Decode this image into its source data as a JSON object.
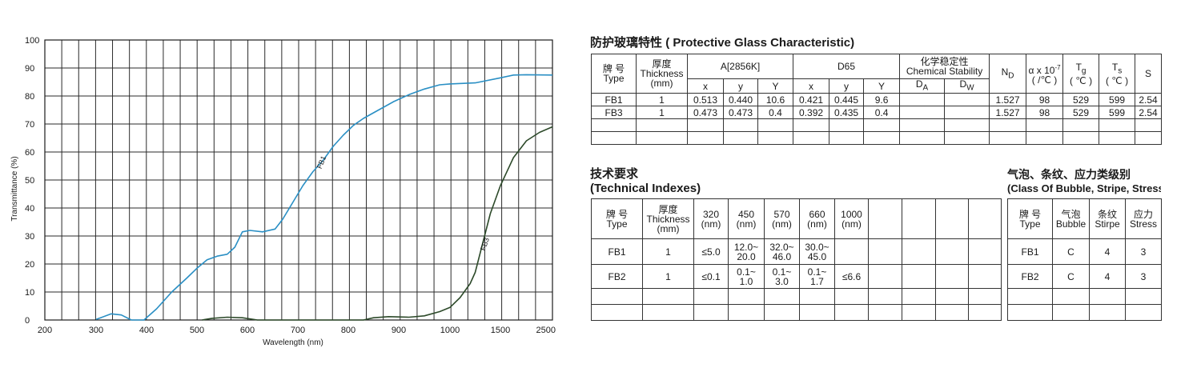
{
  "chart_data": {
    "type": "line",
    "xlabel": "Wavelength (nm)",
    "ylabel": "Transmittance (%)",
    "x_ticks": [
      "200",
      "300",
      "400",
      "500",
      "600",
      "700",
      "800",
      "900",
      "1000",
      "1500",
      "2500"
    ],
    "y_ticks": [
      "0",
      "10",
      "20",
      "30",
      "40",
      "50",
      "60",
      "70",
      "80",
      "90",
      "100"
    ],
    "ylim": [
      0,
      100
    ],
    "grid": true,
    "x_axis_note": "x axis is piecewise: 200–1000 nm linear, then 1000, 1500, 2500 at equal spacing",
    "series": [
      {
        "name": "FB1",
        "color": "#2a8fc4",
        "points": [
          [
            300,
            0.2
          ],
          [
            330,
            2.2
          ],
          [
            350,
            1.8
          ],
          [
            370,
            0
          ],
          [
            395,
            0
          ],
          [
            420,
            4
          ],
          [
            450,
            10
          ],
          [
            480,
            15
          ],
          [
            500,
            18.5
          ],
          [
            520,
            21.5
          ],
          [
            540,
            22.8
          ],
          [
            560,
            23.5
          ],
          [
            575,
            26
          ],
          [
            590,
            31.5
          ],
          [
            605,
            32
          ],
          [
            630,
            31.5
          ],
          [
            655,
            32.5
          ],
          [
            670,
            36
          ],
          [
            690,
            42
          ],
          [
            710,
            48
          ],
          [
            730,
            53
          ],
          [
            750,
            57
          ],
          [
            770,
            62
          ],
          [
            790,
            66
          ],
          [
            810,
            69.5
          ],
          [
            830,
            72
          ],
          [
            860,
            75
          ],
          [
            890,
            78
          ],
          [
            920,
            80.5
          ],
          [
            950,
            82.5
          ],
          [
            980,
            84
          ],
          [
            1000,
            84.3
          ],
          [
            1250,
            84.7
          ],
          [
            1500,
            86.5
          ],
          [
            1750,
            87.5
          ],
          [
            2000,
            87.6
          ],
          [
            2500,
            87.5
          ]
        ]
      },
      {
        "name": "FB3",
        "color": "#2d4a2a",
        "points": [
          [
            510,
            0
          ],
          [
            530,
            0.6
          ],
          [
            560,
            1
          ],
          [
            590,
            0.8
          ],
          [
            620,
            0
          ],
          [
            830,
            0
          ],
          [
            850,
            0.8
          ],
          [
            880,
            1.2
          ],
          [
            920,
            1
          ],
          [
            950,
            1.5
          ],
          [
            980,
            3
          ],
          [
            1000,
            4.5
          ],
          [
            1100,
            8
          ],
          [
            1200,
            13
          ],
          [
            1250,
            17
          ],
          [
            1300,
            24
          ],
          [
            1350,
            31
          ],
          [
            1400,
            38
          ],
          [
            1450,
            43
          ],
          [
            1500,
            48
          ],
          [
            1750,
            58
          ],
          [
            2000,
            64
          ],
          [
            2250,
            67
          ],
          [
            2500,
            69
          ]
        ]
      }
    ]
  },
  "title_protective": {
    "cn": "防护玻璃特性",
    "en": "( Protective Glass Characteristic)"
  },
  "table1": {
    "type_cn": "牌 号",
    "type_en": "Type",
    "thick_cn": "厚度",
    "thick_en": "Thickness",
    "thick_unit": "(mm)",
    "a_header": "A[2856K]",
    "d65_header": "D65",
    "chem_cn": "化学稳定性",
    "chem_en": "Chemical Stability",
    "nd": "N",
    "nd_sub": "D",
    "alpha": "α x 10",
    "alpha_sup": "-7",
    "alpha_unit": "( /℃ )",
    "tg": "T",
    "tg_sub": "g",
    "tg_unit": "( ℃ )",
    "ts": "T",
    "ts_sub": "s",
    "ts_unit": "( ℃ )",
    "s": "S",
    "x": "x",
    "y": "y",
    "Y": "Y",
    "da": "D",
    "da_sub": "A",
    "dw": "D",
    "dw_sub": "W",
    "rows": [
      [
        "FB1",
        "1",
        "0.513",
        "0.440",
        "10.6",
        "0.421",
        "0.445",
        "9.6",
        "",
        "",
        "1.527",
        "98",
        "529",
        "599",
        "2.54"
      ],
      [
        "FB3",
        "1",
        "0.473",
        "0.473",
        "0.4",
        "0.392",
        "0.435",
        "0.4",
        "",
        "",
        "1.527",
        "98",
        "529",
        "599",
        "2.54"
      ]
    ]
  },
  "title_tech": {
    "cn": "技术要求",
    "en": "(Technical Indexes)"
  },
  "table2": {
    "type_cn": "牌 号",
    "type_en": "Type",
    "thick_cn": "厚度",
    "thick_en": "Thickness",
    "thick_unit": "(mm)",
    "cols": [
      "320",
      "450",
      "570",
      "660",
      "1000"
    ],
    "unit": "(nm)",
    "rows": [
      {
        "type": "FB1",
        "thick": "1",
        "v320": "≤5.0",
        "v450a": "12.0~",
        "v450b": "20.0",
        "v570a": "32.0~",
        "v570b": "46.0",
        "v660a": "30.0~",
        "v660b": "45.0",
        "v1000": ""
      },
      {
        "type": "FB2",
        "thick": "1",
        "v320": "≤0.1",
        "v450a": "0.1~",
        "v450b": "1.0",
        "v570a": "0.1~",
        "v570b": "3.0",
        "v660a": "0.1~",
        "v660b": "1.7",
        "v1000": "≤6.6"
      }
    ]
  },
  "title_bubble": {
    "cn": "气泡、条纹、应力类级别",
    "en": "(Class Of Bubble, Stripe, Stress"
  },
  "table3": {
    "type_cn": "牌 号",
    "type_en": "Type",
    "bubble_cn": "气泡",
    "bubble_en": "Bubble",
    "stripe_cn": "条纹",
    "stripe_en": "Stirpe",
    "stress_cn": "应力",
    "stress_en": "Stress",
    "rows": [
      [
        "FB1",
        "C",
        "4",
        "3"
      ],
      [
        "FB2",
        "C",
        "4",
        "3"
      ]
    ]
  }
}
